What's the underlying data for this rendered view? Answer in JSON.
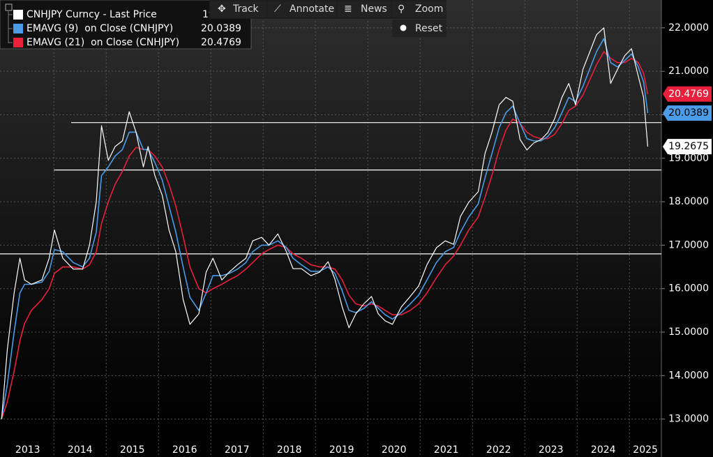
{
  "chart_data": {
    "type": "line",
    "toolbar": [
      "Track",
      "Annotate",
      "News",
      "Zoom",
      "Reset"
    ],
    "x": [
      2013.0,
      2013.11,
      2013.24,
      2013.35,
      2013.44,
      2013.57,
      2013.77,
      2013.91,
      2014.01,
      2014.17,
      2014.37,
      2014.55,
      2014.68,
      2014.81,
      2014.91,
      2015.04,
      2015.17,
      2015.31,
      2015.44,
      2015.57,
      2015.71,
      2015.8,
      2015.93,
      2016.07,
      2016.2,
      2016.33,
      2016.47,
      2016.6,
      2016.77,
      2016.91,
      2017.04,
      2017.21,
      2017.35,
      2017.51,
      2017.67,
      2017.8,
      2017.97,
      2018.11,
      2018.28,
      2018.44,
      2018.57,
      2018.73,
      2018.91,
      2019.08,
      2019.24,
      2019.37,
      2019.51,
      2019.64,
      2019.77,
      2019.93,
      2020.07,
      2020.2,
      2020.33,
      2020.47,
      2020.64,
      2020.81,
      2020.97,
      2021.13,
      2021.31,
      2021.48,
      2021.64,
      2021.77,
      2021.93,
      2022.11,
      2022.24,
      2022.37,
      2022.51,
      2022.64,
      2022.77,
      2022.91,
      2023.04,
      2023.17,
      2023.31,
      2023.44,
      2023.57,
      2023.71,
      2023.84,
      2023.97,
      2024.11,
      2024.24,
      2024.37,
      2024.51,
      2024.64,
      2024.77,
      2024.91,
      2025.04,
      2025.17,
      2025.27,
      2025.35
    ],
    "series": [
      {
        "name": "CNHJPY Curncy - Last Price",
        "color": "#ffffff",
        "values": [
          13.0,
          14.6,
          15.9,
          16.7,
          16.2,
          16.1,
          16.2,
          16.7,
          17.35,
          16.7,
          16.45,
          16.45,
          17.0,
          18.0,
          19.75,
          18.95,
          19.27,
          19.4,
          20.07,
          19.6,
          18.8,
          19.27,
          18.6,
          18.15,
          17.35,
          16.85,
          15.75,
          15.18,
          15.42,
          16.38,
          16.7,
          16.2,
          16.38,
          16.55,
          16.7,
          17.1,
          17.18,
          17.0,
          17.26,
          16.86,
          16.46,
          16.46,
          16.3,
          16.38,
          16.62,
          16.22,
          15.58,
          15.1,
          15.42,
          15.66,
          15.82,
          15.42,
          15.26,
          15.18,
          15.58,
          15.82,
          16.06,
          16.55,
          16.94,
          17.1,
          17.02,
          17.66,
          17.99,
          18.23,
          19.11,
          19.59,
          20.23,
          20.4,
          20.31,
          19.43,
          19.19,
          19.35,
          19.43,
          19.59,
          19.91,
          20.4,
          20.72,
          20.23,
          21.04,
          21.44,
          21.84,
          22.0,
          20.72,
          21.04,
          21.36,
          21.52,
          20.88,
          20.4,
          19.2675
        ]
      },
      {
        "name": "EMAVG (9)  on Close (CNHJPY)",
        "color": "#4a9be8",
        "values": [
          13.0,
          13.8,
          15.0,
          15.9,
          16.1,
          16.1,
          16.15,
          16.4,
          16.9,
          16.85,
          16.6,
          16.5,
          16.7,
          17.3,
          18.6,
          18.8,
          19.05,
          19.2,
          19.6,
          19.6,
          19.2,
          19.2,
          18.9,
          18.5,
          17.9,
          17.3,
          16.5,
          15.8,
          15.5,
          15.9,
          16.3,
          16.3,
          16.35,
          16.45,
          16.6,
          16.85,
          17.0,
          17.0,
          17.1,
          16.95,
          16.7,
          16.55,
          16.4,
          16.4,
          16.5,
          16.35,
          15.95,
          15.5,
          15.45,
          15.55,
          15.7,
          15.55,
          15.4,
          15.3,
          15.45,
          15.65,
          15.85,
          16.2,
          16.6,
          16.85,
          16.95,
          17.3,
          17.65,
          17.95,
          18.55,
          19.1,
          19.7,
          20.05,
          20.2,
          19.8,
          19.45,
          19.4,
          19.4,
          19.5,
          19.7,
          20.05,
          20.4,
          20.3,
          20.65,
          21.05,
          21.45,
          21.75,
          21.2,
          21.1,
          21.25,
          21.4,
          21.1,
          20.75,
          20.0389
        ]
      },
      {
        "name": "EMAVG (21)  on Close (CNHJPY)",
        "color": "#e8203c",
        "values": [
          13.0,
          13.4,
          14.1,
          14.8,
          15.2,
          15.5,
          15.75,
          16.0,
          16.35,
          16.5,
          16.5,
          16.45,
          16.55,
          16.85,
          17.5,
          18.0,
          18.4,
          18.7,
          19.05,
          19.25,
          19.2,
          19.2,
          19.05,
          18.8,
          18.4,
          17.9,
          17.2,
          16.5,
          16.0,
          15.9,
          16.0,
          16.1,
          16.2,
          16.3,
          16.45,
          16.6,
          16.8,
          16.9,
          17.0,
          16.95,
          16.8,
          16.7,
          16.55,
          16.5,
          16.5,
          16.45,
          16.2,
          15.85,
          15.65,
          15.6,
          15.65,
          15.6,
          15.5,
          15.4,
          15.4,
          15.5,
          15.65,
          15.9,
          16.25,
          16.55,
          16.75,
          17.0,
          17.35,
          17.65,
          18.1,
          18.6,
          19.2,
          19.65,
          19.9,
          19.8,
          19.6,
          19.5,
          19.45,
          19.45,
          19.55,
          19.8,
          20.1,
          20.2,
          20.45,
          20.8,
          21.15,
          21.45,
          21.3,
          21.2,
          21.2,
          21.3,
          21.2,
          20.95,
          20.4769
        ]
      }
    ],
    "levels": [
      {
        "value": 19.82,
        "from": 2014.33
      },
      {
        "value": 18.73,
        "from": 2014.0
      },
      {
        "value": 16.8,
        "from": 2012.97
      }
    ],
    "xlim": [
      2012.97,
      2025.61
    ],
    "xticks": [
      {
        "value": 2013,
        "label": "2013"
      },
      {
        "value": 2014,
        "label": "2014"
      },
      {
        "value": 2015,
        "label": "2015"
      },
      {
        "value": 2016,
        "label": "2016"
      },
      {
        "value": 2017,
        "label": "2017"
      },
      {
        "value": 2018,
        "label": "2018"
      },
      {
        "value": 2019,
        "label": "2019"
      },
      {
        "value": 2020,
        "label": "2020"
      },
      {
        "value": 2021,
        "label": "2021"
      },
      {
        "value": 2022,
        "label": "2022"
      },
      {
        "value": 2023,
        "label": "2023"
      },
      {
        "value": 2024,
        "label": "2024"
      },
      {
        "value": 2025,
        "label": "2025"
      }
    ],
    "ylim": [
      12.93,
      22.64
    ],
    "yticks": [
      {
        "value": 13,
        "label": "13.0000"
      },
      {
        "value": 14,
        "label": "14.0000"
      },
      {
        "value": 15,
        "label": "15.0000"
      },
      {
        "value": 16,
        "label": "16.0000"
      },
      {
        "value": 17,
        "label": "17.0000"
      },
      {
        "value": 18,
        "label": "18.0000"
      },
      {
        "value": 19,
        "label": "19.0000"
      },
      {
        "value": 20,
        "label": "20.0000"
      },
      {
        "value": 21,
        "label": "21.0000"
      },
      {
        "value": 22,
        "label": "22.0000"
      }
    ],
    "grid": true
  }
}
